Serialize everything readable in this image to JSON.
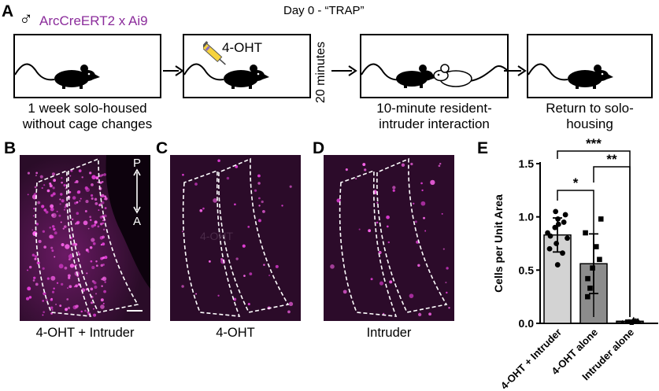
{
  "panel_a": {
    "letter": "A",
    "title": "Day 0 - “TRAP”",
    "strain": "ArcCreERT2 x Ai9",
    "male_symbol": "♂",
    "strain_color": "#8b2c9b",
    "steps": [
      {
        "caption_line1": "1 week solo-housed",
        "caption_line2": "without cage changes"
      },
      {
        "box_label": "4-OHT"
      },
      {
        "caption_line1": "10-minute resident-",
        "caption_line2": "intruder interaction"
      },
      {
        "caption_line1": "Return to solo-",
        "caption_line2": "housing"
      }
    ],
    "interval_label": "20 minutes"
  },
  "micrographs": [
    {
      "letter": "B",
      "label": "4-OHT + Intruder"
    },
    {
      "letter": "C",
      "label": "4-OHT",
      "overlay_text": "4-OHT"
    },
    {
      "letter": "D",
      "label": "Intruder"
    }
  ],
  "orientation": {
    "top": "P",
    "bottom": "A"
  },
  "panel_e": {
    "letter": "E"
  },
  "chart_data": {
    "type": "bar",
    "ylabel": "Cells per Unit Area",
    "ylim": [
      0,
      1.5
    ],
    "yticks": [
      "0.0",
      "0.5",
      "1.0",
      "1.5"
    ],
    "categories": [
      "4-OHT + Intruder",
      "4-OHT alone",
      "Intruder alone"
    ],
    "values": [
      0.83,
      0.56,
      0.02
    ],
    "errors": [
      0.16,
      0.28,
      0.01
    ],
    "bar_colors": [
      "#d3d3d3",
      "#8c8c8c",
      "#303030"
    ],
    "points": [
      [
        1.05,
        1.02,
        0.98,
        0.95,
        0.93,
        0.9,
        0.85,
        0.82,
        0.8,
        0.75,
        0.7,
        0.66,
        0.55
      ],
      [
        0.98,
        0.85,
        0.72,
        0.6,
        0.52,
        0.42,
        0.33,
        0.25
      ],
      [
        0.04,
        0.03,
        0.03,
        0.02,
        0.02,
        0.02,
        0.01,
        0.01,
        0.01,
        0.0
      ]
    ],
    "significance": [
      {
        "from": 0,
        "to": 2,
        "label": "***"
      },
      {
        "from": 1,
        "to": 2,
        "label": "**"
      },
      {
        "from": 0,
        "to": 1,
        "label": "*"
      }
    ]
  }
}
